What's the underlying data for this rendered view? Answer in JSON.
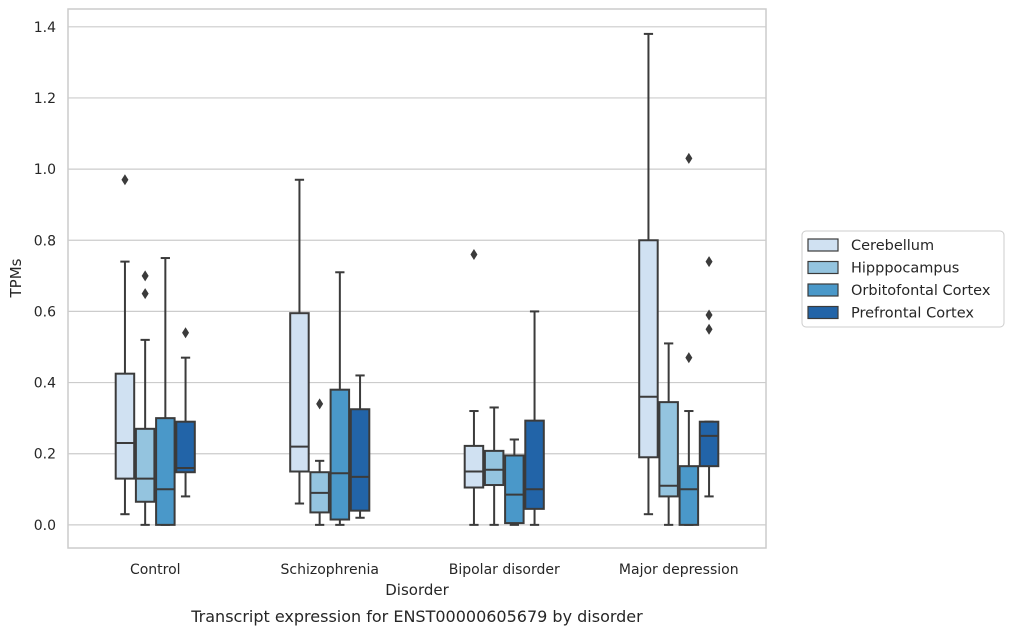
{
  "chart_data": {
    "type": "box",
    "caption": "Transcript expression for ENST00000605679 by disorder",
    "xlabel": "Disorder",
    "ylabel": "TPMs",
    "ylim": [
      -0.065,
      1.45
    ],
    "yticks": [
      "0.0",
      "0.2",
      "0.4",
      "0.6",
      "0.8",
      "1.0",
      "1.2",
      "1.4"
    ],
    "grid": true,
    "legend_position": "right",
    "categories": [
      "Control",
      "Schizophrenia",
      "Bipolar disorder",
      "Major depression"
    ],
    "series": [
      {
        "name": "Cerebellum",
        "color": "#d0e1f2",
        "boxes": [
          {
            "whisker_low": 0.03,
            "q1": 0.13,
            "median": 0.23,
            "q3": 0.425,
            "whisker_high": 0.74,
            "outliers": [
              0.97
            ]
          },
          {
            "whisker_low": 0.06,
            "q1": 0.15,
            "median": 0.22,
            "q3": 0.595,
            "whisker_high": 0.97,
            "outliers": []
          },
          {
            "whisker_low": 0.0,
            "q1": 0.105,
            "median": 0.15,
            "q3": 0.222,
            "whisker_high": 0.32,
            "outliers": [
              0.76
            ]
          },
          {
            "whisker_low": 0.03,
            "q1": 0.19,
            "median": 0.36,
            "q3": 0.8,
            "whisker_high": 1.38,
            "outliers": []
          }
        ]
      },
      {
        "name": "Hipppocampus",
        "color": "#94c4df",
        "boxes": [
          {
            "whisker_low": 0.0,
            "q1": 0.065,
            "median": 0.13,
            "q3": 0.27,
            "whisker_high": 0.52,
            "outliers": [
              0.65,
              0.7
            ]
          },
          {
            "whisker_low": 0.0,
            "q1": 0.035,
            "median": 0.09,
            "q3": 0.148,
            "whisker_high": 0.18,
            "outliers": [
              0.34
            ]
          },
          {
            "whisker_low": 0.0,
            "q1": 0.112,
            "median": 0.155,
            "q3": 0.208,
            "whisker_high": 0.33,
            "outliers": []
          },
          {
            "whisker_low": 0.0,
            "q1": 0.08,
            "median": 0.11,
            "q3": 0.345,
            "whisker_high": 0.51,
            "outliers": []
          }
        ]
      },
      {
        "name": "Orbitofontal Cortex",
        "color": "#4a98c9",
        "boxes": [
          {
            "whisker_low": 0.0,
            "q1": 0.0,
            "median": 0.1,
            "q3": 0.3,
            "whisker_high": 0.75,
            "outliers": []
          },
          {
            "whisker_low": 0.0,
            "q1": 0.015,
            "median": 0.145,
            "q3": 0.38,
            "whisker_high": 0.71,
            "outliers": []
          },
          {
            "whisker_low": 0.0,
            "q1": 0.005,
            "median": 0.085,
            "q3": 0.195,
            "whisker_high": 0.24,
            "outliers": []
          },
          {
            "whisker_low": 0.0,
            "q1": 0.0,
            "median": 0.1,
            "q3": 0.165,
            "whisker_high": 0.32,
            "outliers": [
              0.47,
              1.03
            ]
          }
        ]
      },
      {
        "name": "Prefrontal Cortex",
        "color": "#2264a8",
        "boxes": [
          {
            "whisker_low": 0.08,
            "q1": 0.148,
            "median": 0.16,
            "q3": 0.29,
            "whisker_high": 0.47,
            "outliers": [
              0.54
            ]
          },
          {
            "whisker_low": 0.02,
            "q1": 0.04,
            "median": 0.135,
            "q3": 0.325,
            "whisker_high": 0.42,
            "outliers": []
          },
          {
            "whisker_low": 0.0,
            "q1": 0.045,
            "median": 0.1,
            "q3": 0.293,
            "whisker_high": 0.6,
            "outliers": []
          },
          {
            "whisker_low": 0.08,
            "q1": 0.165,
            "median": 0.25,
            "q3": 0.29,
            "whisker_high": 0.29,
            "outliers": [
              0.55,
              0.59,
              0.74
            ]
          }
        ]
      }
    ]
  }
}
